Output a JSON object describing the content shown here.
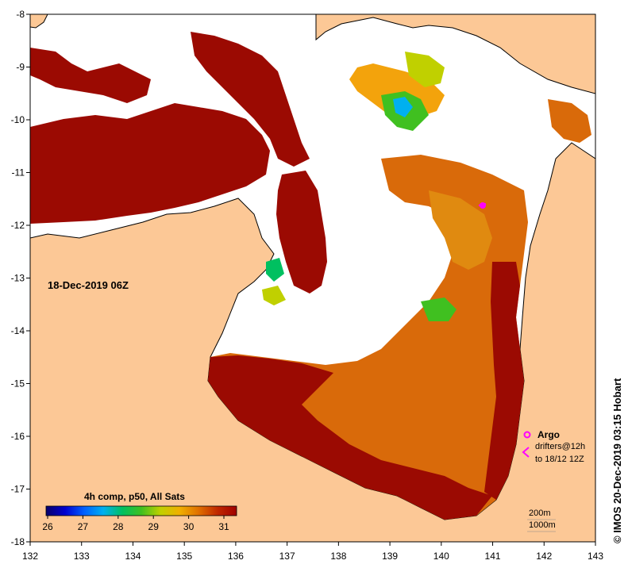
{
  "map": {
    "date_label": "18-Dec-2019 06Z",
    "credit": "© IMOS 20-Dec-2019 03:15 Hobart",
    "x_ticks": [
      "132",
      "133",
      "134",
      "135",
      "136",
      "137",
      "138",
      "139",
      "140",
      "141",
      "142",
      "143"
    ],
    "y_ticks": [
      "-8",
      "-9",
      "-10",
      "-11",
      "-12",
      "-13",
      "-14",
      "-15",
      "-16",
      "-17",
      "-18"
    ],
    "colors": {
      "land": "#fcc896",
      "no_data": "#ffffff",
      "sst_hot": "#9b0a02",
      "sst_warm": "#d96a0a",
      "sst_mid": "#f3a30c",
      "argo": "#ff00ff",
      "coast": "#000000"
    }
  },
  "colorbar": {
    "title": "4h comp, p50, All Sats",
    "labels": [
      "26",
      "27",
      "28",
      "29",
      "30",
      "31"
    ],
    "colors": [
      "#08006a",
      "#0000d0",
      "#0060ff",
      "#00b0f0",
      "#00c060",
      "#40c020",
      "#c0d000",
      "#f0b000",
      "#e07000",
      "#c02800",
      "#a00000"
    ]
  },
  "legend": {
    "argo": "Argo",
    "drifters": "drifters@12h",
    "drifters_to": "to 18/12 12Z",
    "scale_200": "200m",
    "scale_1000": "1000m"
  }
}
